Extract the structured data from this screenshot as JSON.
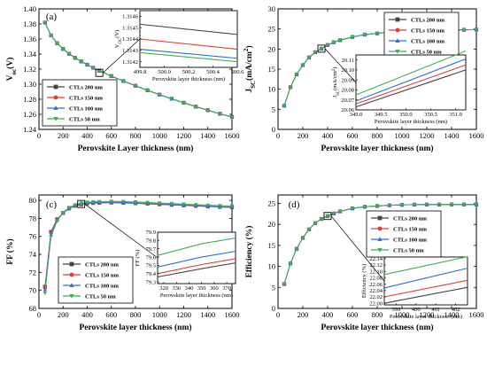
{
  "colors": {
    "CTLs 200 nm": "#444444",
    "CTLs 150 nm": "#e53935",
    "CTLs 100 nm": "#2f6fd8",
    "CTLs 50 nm": "#3fae56"
  },
  "chart_data": [
    {
      "type": "line",
      "panel": "(a)",
      "xlabel": "Perovskite Layer thickness (nm)",
      "ylabel": "V",
      "ylabel_sub": "oc",
      "ylabel_tail": "(V)",
      "xlim": [
        0,
        1600
      ],
      "ylim": [
        1.24,
        1.4
      ],
      "xticks": [
        "0",
        "200",
        "400",
        "600",
        "800",
        "1000",
        "1200",
        "1400",
        "1600"
      ],
      "yticks": [
        "1.24",
        "1.26",
        "1.28",
        "1.30",
        "1.32",
        "1.34",
        "1.36",
        "1.38",
        "1.40"
      ],
      "legend": [
        "CTLs 200 nm",
        "CTLs 150 nm",
        "CTLs 100 nm",
        "CTLs 50 nm"
      ],
      "x": [
        50,
        100,
        150,
        200,
        250,
        300,
        350,
        400,
        450,
        500,
        600,
        700,
        800,
        900,
        1000,
        1100,
        1200,
        1300,
        1400,
        1500,
        1600
      ],
      "series": [
        {
          "name": "CTLs 200 nm",
          "values": [
            1.3818,
            1.3648,
            1.3545,
            1.3468,
            1.3404,
            1.335,
            1.3303,
            1.3259,
            1.3218,
            1.318,
            1.3108,
            1.3042,
            1.298,
            1.292,
            1.2862,
            1.2807,
            1.2754,
            1.2703,
            1.2655,
            1.2608,
            1.2565
          ]
        },
        {
          "name": "CTLs 150 nm",
          "values": [
            1.3817,
            1.3647,
            1.3544,
            1.3467,
            1.3403,
            1.3349,
            1.3302,
            1.3258,
            1.3217,
            1.3179,
            1.3107,
            1.3041,
            1.2979,
            1.2919,
            1.2861,
            1.2806,
            1.2753,
            1.2702,
            1.2654,
            1.2607,
            1.2564
          ]
        },
        {
          "name": "CTLs 100 nm",
          "values": [
            1.3816,
            1.3646,
            1.3543,
            1.3466,
            1.3402,
            1.3348,
            1.3301,
            1.3257,
            1.3216,
            1.3178,
            1.3106,
            1.304,
            1.2978,
            1.2918,
            1.286,
            1.2805,
            1.2752,
            1.2701,
            1.2653,
            1.2606,
            1.2563
          ]
        },
        {
          "name": "CTLs 50 nm",
          "values": [
            1.3816,
            1.3646,
            1.3543,
            1.3466,
            1.3402,
            1.3348,
            1.3301,
            1.3257,
            1.3216,
            1.3178,
            1.3106,
            1.304,
            1.2978,
            1.2918,
            1.286,
            1.2805,
            1.2752,
            1.2701,
            1.2653,
            1.2606,
            1.2563
          ]
        }
      ],
      "inset": {
        "xlabel": "Perovskite layer thickness (nm)",
        "ylabel": "V",
        "ylabel_sub": "OC",
        "ylabel_tail": "(V)",
        "xlim": [
          499.8,
          500.6
        ],
        "ylim": [
          1.31415,
          1.31465
        ],
        "xticks": [
          "499.8",
          "500.0",
          "500.2",
          "500.4",
          "500.6"
        ],
        "yticks": [
          "1.3142",
          "1.3143",
          "1.3144",
          "1.3145",
          "1.3146"
        ],
        "series": [
          {
            "name": "CTLs 200 nm",
            "x": [
              499.8,
              500.6
            ],
            "values": [
              1.31453,
              1.31444
            ]
          },
          {
            "name": "CTLs 150 nm",
            "x": [
              499.8,
              500.6
            ],
            "values": [
              1.3144,
              1.31431
            ]
          },
          {
            "name": "CTLs 100 nm",
            "x": [
              499.8,
              500.6
            ],
            "values": [
              1.31431,
              1.31423
            ]
          },
          {
            "name": "CTLs 50 nm",
            "x": [
              499.8,
              500.6
            ],
            "values": [
              1.31428,
              1.3142
            ]
          }
        ]
      }
    },
    {
      "type": "line",
      "panel": "(b)",
      "xlabel": "Perovskite layer thickness (nm)",
      "ylabel": "J",
      "ylabel_sub": "SC",
      "ylabel_tail": "(mA/cm",
      "ylabel_sup": "2",
      "ylabel_end": ")",
      "xlim": [
        0,
        1600
      ],
      "ylim": [
        0,
        30
      ],
      "xticks": [
        "0",
        "200",
        "400",
        "600",
        "800",
        "1000",
        "1200",
        "1400",
        "1600"
      ],
      "yticks": [
        "0",
        "5",
        "10",
        "15",
        "20",
        "25",
        "30"
      ],
      "legend": [
        "CTLs 200 nm",
        "CTLs 150 nm",
        "CTLs 100 nm",
        "CTLs 50 nm"
      ],
      "x": [
        50,
        100,
        150,
        200,
        250,
        300,
        350,
        400,
        450,
        500,
        600,
        700,
        800,
        900,
        1000,
        1100,
        1200,
        1300,
        1400,
        1500,
        1600
      ],
      "series": [
        {
          "name": "CTLs 200 nm",
          "values": [
            5.9,
            10.5,
            13.7,
            16.0,
            17.9,
            19.2,
            20.1,
            21.0,
            21.7,
            22.2,
            23.0,
            23.6,
            23.9,
            24.2,
            24.4,
            24.5,
            24.6,
            24.7,
            24.75,
            24.8,
            24.85
          ]
        },
        {
          "name": "CTLs 150 nm",
          "values": [
            5.9,
            10.5,
            13.7,
            16.0,
            17.9,
            19.2,
            20.11,
            21.0,
            21.7,
            22.2,
            23.0,
            23.6,
            23.9,
            24.2,
            24.4,
            24.5,
            24.6,
            24.7,
            24.75,
            24.8,
            24.85
          ]
        },
        {
          "name": "CTLs 100 nm",
          "values": [
            5.9,
            10.5,
            13.7,
            16.0,
            17.9,
            19.2,
            20.12,
            21.0,
            21.7,
            22.2,
            23.0,
            23.6,
            23.9,
            24.2,
            24.4,
            24.5,
            24.6,
            24.7,
            24.75,
            24.8,
            24.85
          ]
        },
        {
          "name": "CTLs 50 nm",
          "values": [
            5.9,
            10.5,
            13.7,
            16.0,
            17.9,
            19.2,
            20.13,
            21.0,
            21.7,
            22.2,
            23.0,
            23.6,
            23.9,
            24.2,
            24.4,
            24.5,
            24.6,
            24.7,
            24.75,
            24.8,
            24.85
          ]
        }
      ],
      "inset": {
        "xlabel": "Perovskite layer thickness (nm)",
        "ylabel": "J",
        "ylabel_sub": "SC",
        "ylabel_tail": "(mA/cm",
        "ylabel_sup": "2",
        "ylabel_end": ")",
        "xlim": [
          349.0,
          351.2
        ],
        "ylim": [
          20.06,
          20.115
        ],
        "xticks": [
          "349.0",
          "349.5",
          "350.0",
          "350.5",
          "351.0"
        ],
        "yticks": [
          "20.06",
          "20.07",
          "20.08",
          "20.09",
          "20.10",
          "20.11"
        ],
        "series": [
          {
            "name": "CTLs 200 nm",
            "x": [
              349.0,
              351.2
            ],
            "values": [
              20.063,
              20.1
            ]
          },
          {
            "name": "CTLs 150 nm",
            "x": [
              349.0,
              351.2
            ],
            "values": [
              20.066,
              20.105
            ]
          },
          {
            "name": "CTLs 100 nm",
            "x": [
              349.0,
              351.2
            ],
            "values": [
              20.069,
              20.111
            ]
          },
          {
            "name": "CTLs 50 nm",
            "x": [
              349.0,
              351.2
            ],
            "values": [
              20.075,
              20.119
            ]
          }
        ]
      }
    },
    {
      "type": "line",
      "panel": "(c)",
      "xlabel": "Perovskite layer thickness (nm)",
      "ylabel": "FF (%)",
      "xlim": [
        0,
        1600
      ],
      "ylim": [
        68,
        80.6
      ],
      "xticks": [
        "0",
        "200",
        "400",
        "600",
        "800",
        "1000",
        "1200",
        "1400",
        "1600"
      ],
      "yticks": [
        "68",
        "70",
        "72",
        "74",
        "76",
        "78",
        "80"
      ],
      "legend": [
        "CTLs 200 nm",
        "CTLs 150 nm",
        "CTLs 100 nm",
        "CTLs 50 nm"
      ],
      "x": [
        50,
        100,
        150,
        200,
        250,
        300,
        350,
        400,
        450,
        500,
        600,
        700,
        800,
        900,
        1000,
        1100,
        1200,
        1300,
        1400,
        1500,
        1600
      ],
      "series": [
        {
          "name": "CTLs 200 nm",
          "values": [
            70.4,
            76.5,
            77.9,
            78.6,
            79.1,
            79.4,
            79.55,
            79.65,
            79.7,
            79.72,
            79.75,
            79.72,
            79.68,
            79.62,
            79.56,
            79.5,
            79.44,
            79.38,
            79.32,
            79.27,
            79.22
          ]
        },
        {
          "name": "CTLs 150 nm",
          "values": [
            70.3,
            76.4,
            77.85,
            78.6,
            79.1,
            79.4,
            79.56,
            79.66,
            79.71,
            79.73,
            79.76,
            79.73,
            79.69,
            79.63,
            79.57,
            79.51,
            79.45,
            79.39,
            79.33,
            79.28,
            79.23
          ]
        },
        {
          "name": "CTLs 100 nm",
          "values": [
            70.1,
            76.2,
            77.8,
            78.6,
            79.1,
            79.45,
            79.6,
            79.7,
            79.75,
            79.77,
            79.8,
            79.77,
            79.73,
            79.67,
            79.61,
            79.55,
            79.49,
            79.43,
            79.37,
            79.32,
            79.27
          ]
        },
        {
          "name": "CTLs 50 nm",
          "values": [
            69.7,
            76.0,
            77.7,
            78.65,
            79.2,
            79.5,
            79.7,
            79.8,
            79.85,
            79.87,
            79.9,
            79.87,
            79.83,
            79.77,
            79.71,
            79.65,
            79.59,
            79.53,
            79.47,
            79.42,
            79.37
          ]
        }
      ],
      "inset": {
        "xlabel": "Perovskite layer thickness (nm)",
        "ylabel": "FF (%)",
        "xlim": [
          315,
          377
        ],
        "ylim": [
          79.28,
          79.9
        ],
        "xticks": [
          "320",
          "330",
          "340",
          "350",
          "360",
          "370"
        ],
        "yticks": [
          "79.3",
          "79.4",
          "79.5",
          "79.6",
          "79.7",
          "79.8",
          "79.9"
        ],
        "series": [
          {
            "name": "CTLs 200 nm",
            "x": [
              315,
              350,
              377
            ],
            "values": [
              79.36,
              79.46,
              79.53
            ]
          },
          {
            "name": "CTLs 150 nm",
            "x": [
              315,
              350,
              377
            ],
            "values": [
              79.4,
              79.51,
              79.58
            ]
          },
          {
            "name": "CTLs 100 nm",
            "x": [
              315,
              350,
              377
            ],
            "values": [
              79.48,
              79.6,
              79.67
            ]
          },
          {
            "name": "CTLs 50 nm",
            "x": [
              315,
              350,
              377
            ],
            "values": [
              79.62,
              79.76,
              79.83
            ]
          }
        ]
      }
    },
    {
      "type": "line",
      "panel": "(d)",
      "xlabel": "Perovskite layer thickness (nm)",
      "ylabel": "Efficiency (%)",
      "xlim": [
        0,
        1600
      ],
      "ylim": [
        0,
        27
      ],
      "xticks": [
        "0",
        "200",
        "400",
        "600",
        "800",
        "1000",
        "1200",
        "1400",
        "1600"
      ],
      "yticks": [
        "0",
        "5",
        "10",
        "15",
        "20",
        "25"
      ],
      "legend": [
        "CTLs 200 nm",
        "CTLs 150 nm",
        "CTLs 100 nm",
        "CTLs 50 nm"
      ],
      "x": [
        50,
        100,
        150,
        200,
        250,
        300,
        350,
        400,
        450,
        500,
        600,
        700,
        800,
        900,
        1000,
        1100,
        1200,
        1300,
        1400,
        1500,
        1600
      ],
      "series": [
        {
          "name": "CTLs 200 nm",
          "values": [
            5.8,
            10.7,
            14.2,
            16.8,
            18.8,
            20.3,
            21.3,
            22.0,
            22.6,
            23.1,
            23.8,
            24.2,
            24.4,
            24.55,
            24.65,
            24.7,
            24.72,
            24.73,
            24.74,
            24.74,
            24.74
          ]
        },
        {
          "name": "CTLs 150 nm",
          "values": [
            5.8,
            10.7,
            14.2,
            16.8,
            18.8,
            20.3,
            21.3,
            22.02,
            22.6,
            23.1,
            23.8,
            24.2,
            24.4,
            24.55,
            24.65,
            24.7,
            24.72,
            24.73,
            24.74,
            24.74,
            24.74
          ]
        },
        {
          "name": "CTLs 100 nm",
          "values": [
            5.8,
            10.7,
            14.2,
            16.8,
            18.8,
            20.3,
            21.3,
            22.04,
            22.6,
            23.1,
            23.8,
            24.2,
            24.4,
            24.55,
            24.65,
            24.7,
            24.72,
            24.73,
            24.74,
            24.74,
            24.74
          ]
        },
        {
          "name": "CTLs 50 nm",
          "values": [
            5.8,
            10.7,
            14.2,
            16.8,
            18.8,
            20.3,
            21.3,
            22.08,
            22.6,
            23.1,
            23.8,
            24.2,
            24.4,
            24.55,
            24.65,
            24.7,
            24.72,
            24.73,
            24.74,
            24.74,
            24.74
          ]
        }
      ],
      "inset": {
        "xlabel": "Perovskite layer thickness (nm)",
        "ylabel": "Efficiency (%)",
        "xlim": [
          398.4,
          402.6
        ],
        "ylim": [
          21.995,
          22.145
        ],
        "xticks": [
          "399",
          "400",
          "401",
          "402"
        ],
        "yticks": [
          "22.00",
          "22.02",
          "22.04",
          "22.06",
          "22.08",
          "22.10",
          "22.12",
          "22.14"
        ],
        "series": [
          {
            "name": "CTLs 200 nm",
            "x": [
              398.4,
              402.6
            ],
            "values": [
              22.0,
              22.05
            ]
          },
          {
            "name": "CTLs 150 nm",
            "x": [
              398.4,
              402.6
            ],
            "values": [
              22.02,
              22.072
            ]
          },
          {
            "name": "CTLs 100 nm",
            "x": [
              398.4,
              402.6
            ],
            "values": [
              22.048,
              22.11
            ]
          },
          {
            "name": "CTLs 50 nm",
            "x": [
              398.4,
              402.6
            ],
            "values": [
              22.09,
              22.146
            ]
          }
        ]
      }
    }
  ]
}
